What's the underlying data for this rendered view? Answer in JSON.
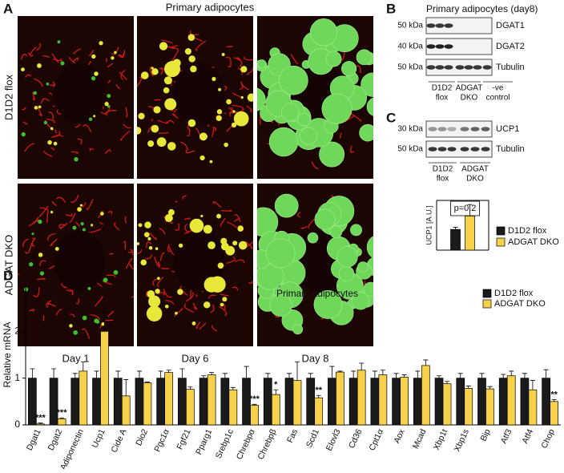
{
  "panel_labels": [
    "A",
    "B",
    "C",
    "D"
  ],
  "panel_a": {
    "title": "Primary adipocytes",
    "rows": [
      "D1D2 flox",
      "ADGAT DKO"
    ],
    "columns": [
      "Day 1",
      "Day 6",
      "Day 8"
    ]
  },
  "panel_b": {
    "title": "Primary adipocytes (day8)",
    "blots": [
      {
        "size": "50 kDa",
        "protein": "DGAT1"
      },
      {
        "size": "40 kDa",
        "protein": "DGAT2"
      },
      {
        "size": "50 kDa",
        "protein": "Tubulin"
      }
    ],
    "groups": [
      [
        "D1D2",
        "flox"
      ],
      [
        "ADGAT",
        "DKO"
      ],
      [
        "-ve",
        "control"
      ]
    ]
  },
  "panel_c": {
    "blots": [
      {
        "size": "30 kDa",
        "protein": "UCP1"
      },
      {
        "size": "50 kDa",
        "protein": "Tubulin"
      }
    ],
    "groups": [
      [
        "D1D2",
        "flox"
      ],
      [
        "ADGAT",
        "DKO"
      ]
    ]
  },
  "chart_data": [
    {
      "type": "bar",
      "ylabel": "UCP1 [A.U.]",
      "annotation": "p=0.2",
      "categories": [
        null
      ],
      "series": [
        {
          "name": "D1D2 flox",
          "color": "#1a1a1a",
          "values": [
            1.0
          ],
          "errors": [
            0.1
          ]
        },
        {
          "name": "ADGAT DKO",
          "color": "#f7d14a",
          "values": [
            1.65
          ],
          "errors": [
            0.55
          ]
        }
      ],
      "ylim": [
        0,
        2.4
      ],
      "legend": "right"
    },
    {
      "type": "bar",
      "title": "Primary adipocytes",
      "ylabel": "Relative mRNA",
      "categories": [
        "Dgat1",
        "Dgat2",
        "Adiponectin",
        "Ucp1",
        "Cide A",
        "Dio2",
        "Pgc1α",
        "Fgf21",
        "Pparg1",
        "Srebp1c",
        "Chrebpα",
        "Chrebpβ",
        "Fas",
        "Scd1",
        "Elovl3",
        "Cd36",
        "Cpt1α",
        "Aox",
        "Mcad",
        "Xbp1t",
        "Xbp1s",
        "Bip",
        "Atf3",
        "Atf4",
        "Chop"
      ],
      "series": [
        {
          "name": "D1D2 flox",
          "color": "#1a1a1a",
          "values": [
            1,
            1,
            1,
            1,
            1,
            1,
            1,
            1,
            1,
            1,
            1,
            1,
            1,
            1,
            1,
            1,
            1,
            1,
            1,
            1,
            1,
            1,
            1,
            1,
            1
          ],
          "errors": [
            0.2,
            0.2,
            0.1,
            0.15,
            0.15,
            0.15,
            0.15,
            0.2,
            0.05,
            0.1,
            0.25,
            0.1,
            0.1,
            0.1,
            0.25,
            0.15,
            0.15,
            0.1,
            0.15,
            0.05,
            0.1,
            0.1,
            0.08,
            0.1,
            0.18
          ]
        },
        {
          "name": "ADGAT DKO",
          "color": "#f7d14a",
          "values": [
            0.02,
            0.13,
            1.15,
            2.0,
            0.62,
            0.9,
            1.12,
            0.76,
            1.07,
            0.75,
            0.42,
            0.65,
            0.95,
            0.58,
            1.13,
            1.17,
            1.07,
            1.02,
            1.27,
            0.88,
            0.78,
            0.77,
            1.05,
            0.75,
            0.5
          ],
          "errors": [
            0.02,
            0.02,
            0.2,
            0.5,
            0.35,
            0.02,
            0.05,
            0.05,
            0.05,
            0.05,
            0.02,
            0.1,
            0.4,
            0.05,
            0.02,
            0.15,
            0.1,
            0.05,
            0.12,
            0.05,
            0.05,
            0.05,
            0.1,
            0.2,
            0.04
          ]
        }
      ],
      "significance": [
        "***",
        "***",
        null,
        "**",
        null,
        null,
        null,
        null,
        null,
        null,
        "***",
        "*",
        null,
        "**",
        null,
        null,
        null,
        null,
        null,
        null,
        null,
        null,
        null,
        null,
        "**"
      ],
      "ylim": [
        0,
        3
      ],
      "yticks": [
        0,
        1,
        2
      ],
      "legend": "upper right"
    }
  ]
}
